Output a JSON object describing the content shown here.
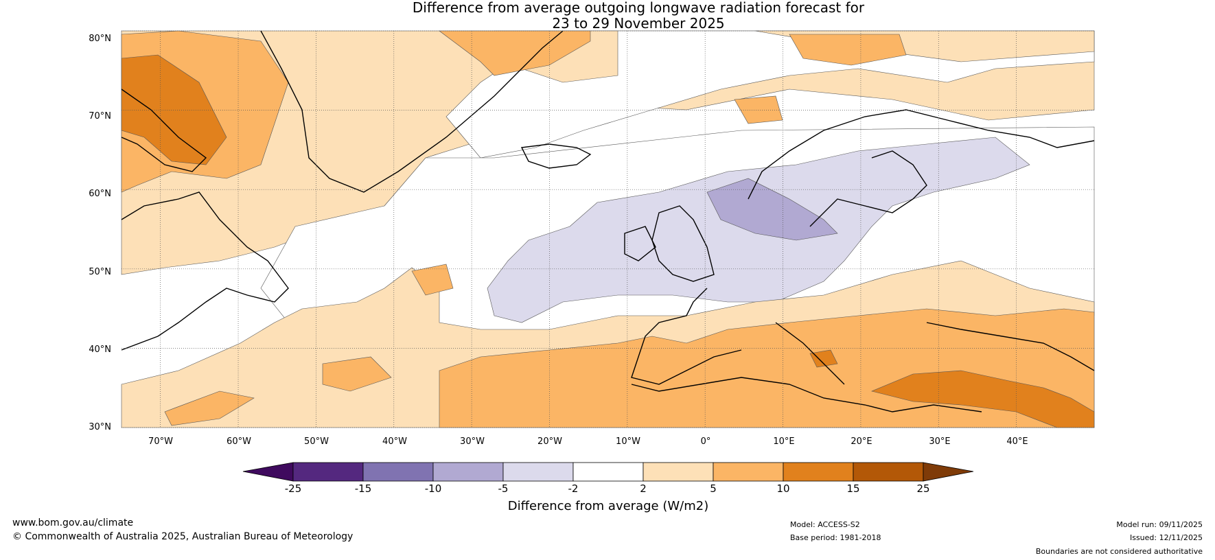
{
  "title": {
    "line1": "Difference from average outgoing longwave radiation forecast for",
    "line2": "23 to 29 November 2025"
  },
  "map": {
    "lat_labels": [
      "80°N",
      "70°N",
      "60°N",
      "50°N",
      "40°N",
      "30°N"
    ],
    "lon_labels": [
      "70°W",
      "60°W",
      "50°W",
      "40°W",
      "30°W",
      "20°W",
      "10°W",
      "0°",
      "10°E",
      "20°E",
      "30°E",
      "40°E"
    ],
    "lat_range": [
      30,
      80
    ],
    "lon_range": [
      -75,
      50
    ]
  },
  "colorbar": {
    "title": "Difference from average (W/m2)",
    "ticks": [
      "-25",
      "-15",
      "-10",
      "-5",
      "-2",
      "2",
      "5",
      "10",
      "15",
      "25"
    ],
    "colors": [
      "#3f0a5e",
      "#54287f",
      "#8073b1",
      "#b1a9d2",
      "#dcdaec",
      "#ffffff",
      "#fde0b7",
      "#fbb565",
      "#e1811d",
      "#b35807",
      "#7f3b08"
    ]
  },
  "footer": {
    "website": "www.bom.gov.au/climate",
    "copyright": "© Commonwealth of Australia 2025, Australian Bureau of Meteorology",
    "model": "Model: ACCESS-S2",
    "base_period": "Base period: 1981-2018",
    "model_run": "Model run: 09/11/2025",
    "issued": "Issued: 12/11/2025",
    "disclaimer": "Boundaries are not considered authoritative"
  }
}
